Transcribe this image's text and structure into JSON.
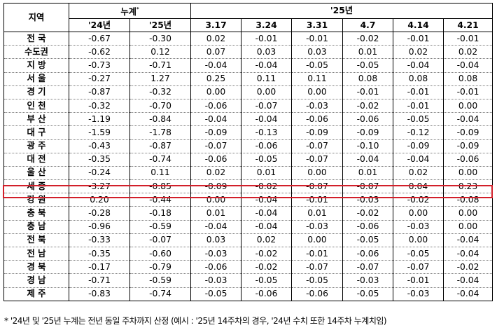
{
  "header": {
    "region": "지역",
    "cumulative": "누계",
    "cumulative_mark": "*",
    "year_group": "'25년",
    "cum_cols": [
      "'24년",
      "'25년"
    ],
    "weeks": [
      "3.17",
      "3.24",
      "3.31",
      "4.7",
      "4.14",
      "4.21"
    ]
  },
  "rows": [
    {
      "region": "전 국",
      "values": [
        "-0.67",
        "-0.30",
        "0.02",
        "-0.01",
        "-0.01",
        "-0.02",
        "-0.01",
        "-0.01"
      ]
    },
    {
      "region": "수도권",
      "values": [
        "-0.62",
        "0.12",
        "0.07",
        "0.03",
        "0.03",
        "0.01",
        "0.02",
        "0.02"
      ]
    },
    {
      "region": "지 방",
      "values": [
        "-0.73",
        "-0.71",
        "-0.04",
        "-0.04",
        "-0.05",
        "-0.05",
        "-0.04",
        "-0.04"
      ]
    },
    {
      "region": "서 울",
      "values": [
        "-0.27",
        "1.27",
        "0.25",
        "0.11",
        "0.11",
        "0.08",
        "0.08",
        "0.08"
      ]
    },
    {
      "region": "경 기",
      "values": [
        "-0.87",
        "-0.32",
        "0.00",
        "0.00",
        "0.00",
        "-0.01",
        "-0.01",
        "-0.01"
      ]
    },
    {
      "region": "인 천",
      "values": [
        "-0.32",
        "-0.70",
        "-0.06",
        "-0.07",
        "-0.03",
        "-0.02",
        "-0.01",
        "0.00"
      ]
    },
    {
      "region": "부 산",
      "values": [
        "-1.19",
        "-0.84",
        "-0.04",
        "-0.04",
        "-0.06",
        "-0.06",
        "-0.05",
        "-0.04"
      ]
    },
    {
      "region": "대 구",
      "values": [
        "-1.59",
        "-1.78",
        "-0.09",
        "-0.13",
        "-0.09",
        "-0.09",
        "-0.12",
        "-0.09"
      ]
    },
    {
      "region": "광 주",
      "values": [
        "-0.43",
        "-0.87",
        "-0.07",
        "-0.06",
        "-0.07",
        "-0.10",
        "-0.09",
        "-0.09"
      ]
    },
    {
      "region": "대 전",
      "values": [
        "-0.35",
        "-0.74",
        "-0.06",
        "-0.05",
        "-0.07",
        "-0.04",
        "-0.04",
        "-0.06"
      ]
    },
    {
      "region": "울 산",
      "values": [
        "-0.24",
        "0.11",
        "0.02",
        "0.01",
        "0.00",
        "0.01",
        "0.02",
        "0.00"
      ]
    },
    {
      "region": "세 종",
      "values": [
        "-3.27",
        "-0.85",
        "-0.09",
        "-0.02",
        "-0.07",
        "-0.07",
        "0.04",
        "0.23"
      ],
      "highlight": true
    },
    {
      "region": "강 원",
      "values": [
        "0.20",
        "-0.44",
        "0.00",
        "-0.04",
        "-0.01",
        "-0.03",
        "-0.02",
        "-0.08"
      ]
    },
    {
      "region": "충 북",
      "values": [
        "-0.28",
        "-0.18",
        "0.01",
        "-0.04",
        "0.01",
        "-0.02",
        "0.00",
        "0.00"
      ]
    },
    {
      "region": "충 남",
      "values": [
        "-0.96",
        "-0.59",
        "-0.04",
        "-0.04",
        "-0.03",
        "-0.06",
        "-0.03",
        "0.00"
      ]
    },
    {
      "region": "전 북",
      "values": [
        "-0.33",
        "-0.07",
        "0.03",
        "0.02",
        "0.00",
        "-0.05",
        "0.00",
        "-0.04"
      ]
    },
    {
      "region": "전 남",
      "values": [
        "-0.35",
        "-0.60",
        "-0.03",
        "-0.02",
        "-0.01",
        "-0.06",
        "-0.05",
        "-0.04"
      ]
    },
    {
      "region": "경 북",
      "values": [
        "-0.17",
        "-0.79",
        "-0.06",
        "-0.02",
        "-0.07",
        "-0.07",
        "-0.07",
        "-0.02"
      ]
    },
    {
      "region": "경 남",
      "values": [
        "-0.71",
        "-0.59",
        "-0.03",
        "-0.05",
        "-0.05",
        "-0.03",
        "-0.01",
        "-0.04"
      ]
    },
    {
      "region": "제 주",
      "values": [
        "-0.83",
        "-0.74",
        "-0.05",
        "-0.06",
        "-0.06",
        "-0.05",
        "-0.03",
        "-0.04"
      ]
    }
  ],
  "footnote": "* '24년 및 '25년 누계는 전년 동일 주차까지 산정 (예시 : '25년 14주차의 경우, '24년 수치 또한 14주차 누계치임)",
  "colors": {
    "highlight_border": "#d21f2a",
    "grid": "#000000",
    "dotted_rule": "#7a7a7a"
  }
}
